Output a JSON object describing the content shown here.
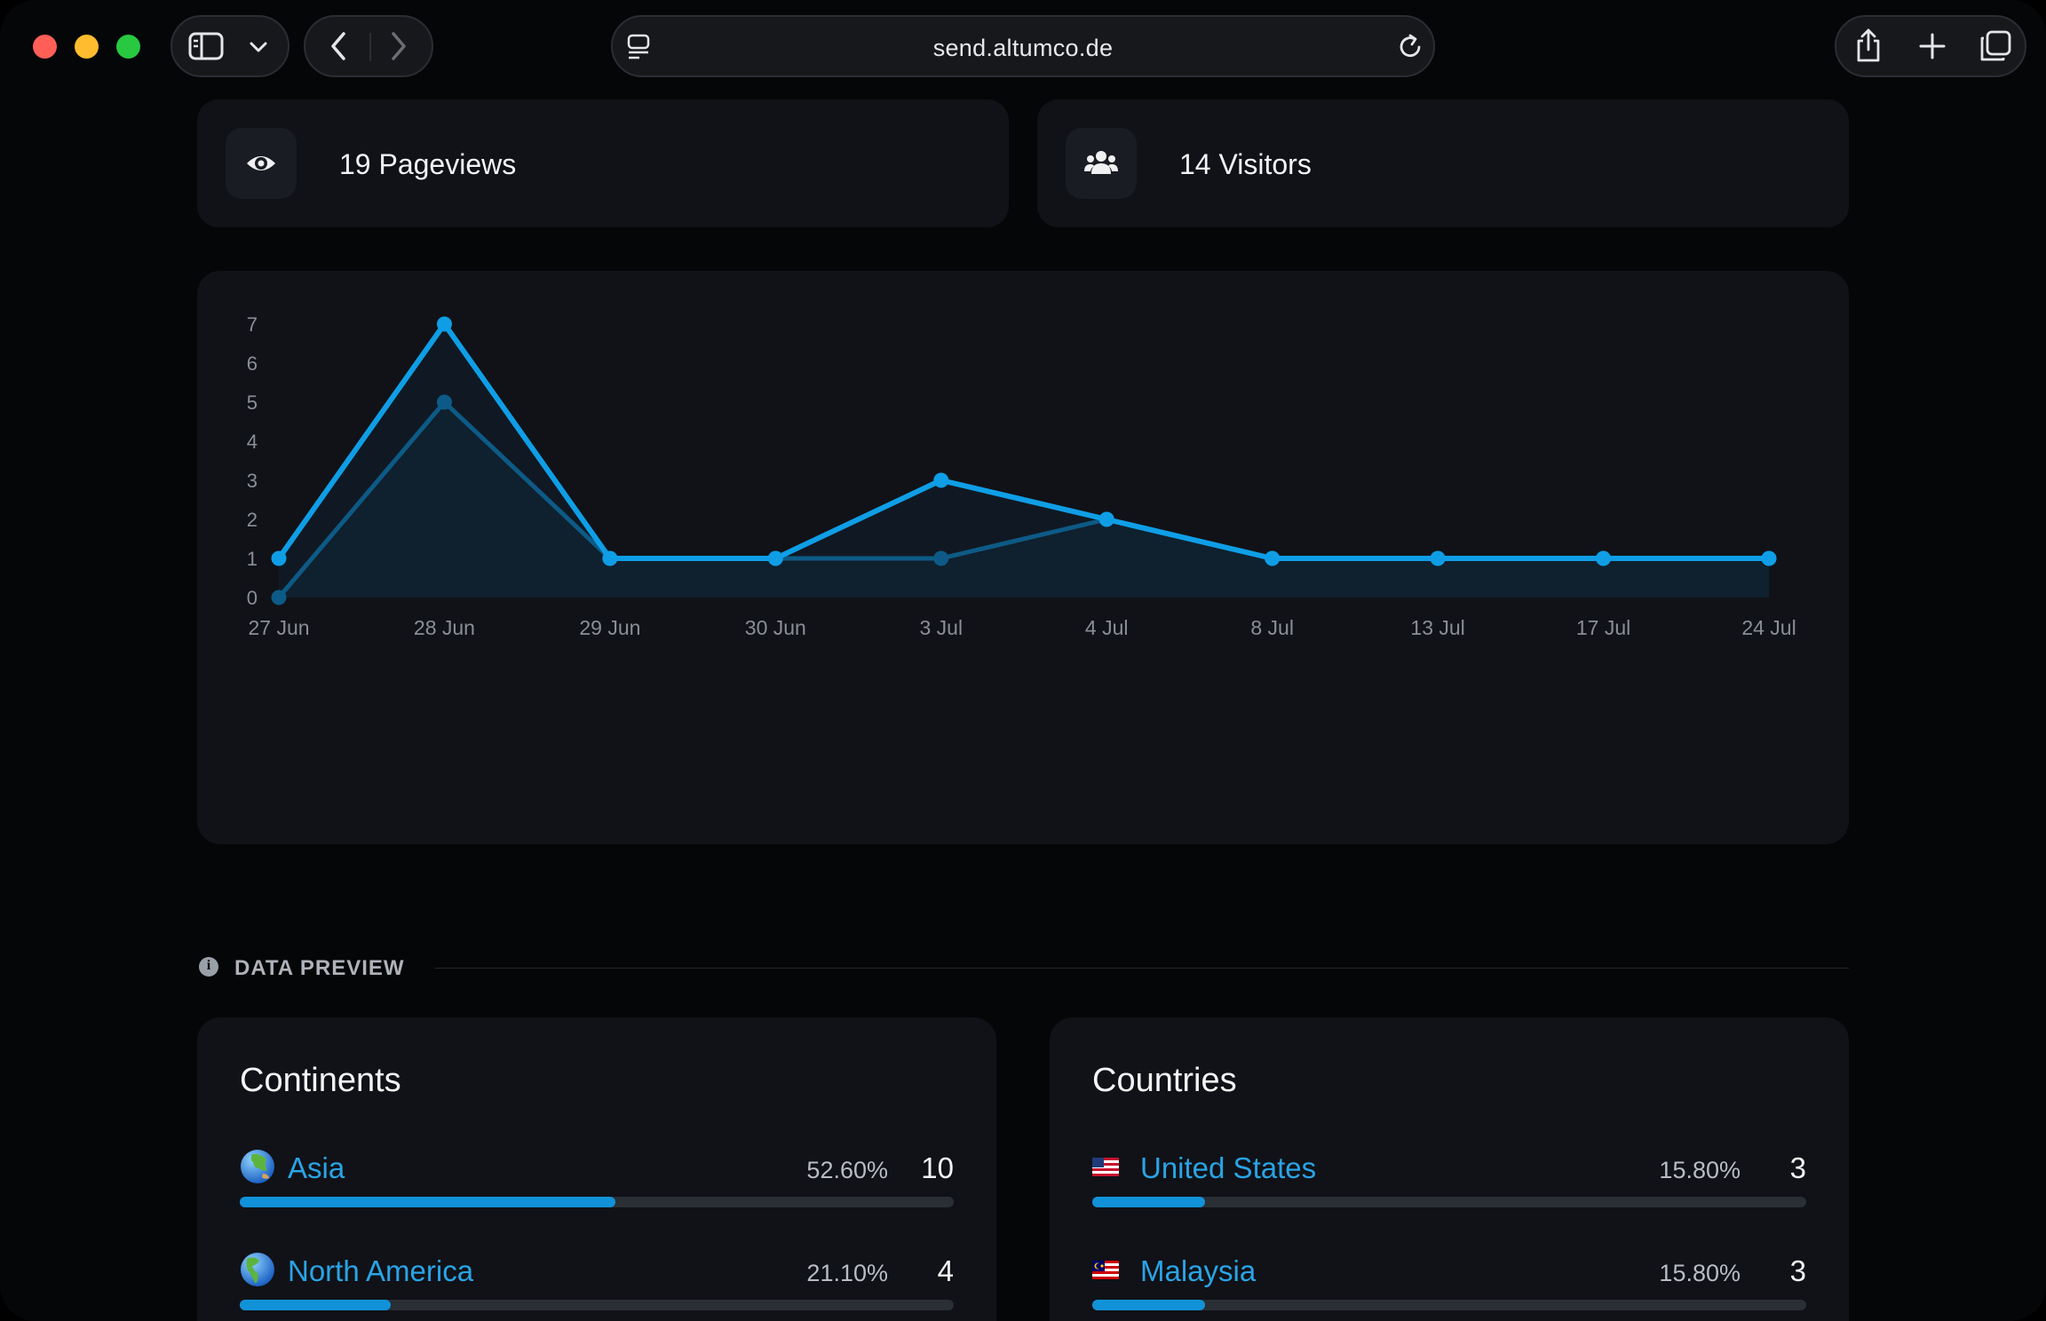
{
  "browser": {
    "url": "send.altumco.de"
  },
  "stats": {
    "pageviews": "19 Pageviews",
    "visitors": "14 Visitors"
  },
  "chart_data": {
    "type": "line",
    "categories": [
      "27 Jun",
      "28 Jun",
      "29 Jun",
      "30 Jun",
      "3 Jul",
      "4 Jul",
      "8 Jul",
      "13 Jul",
      "17 Jul",
      "24 Jul"
    ],
    "y_ticks": [
      "0",
      "1",
      "2",
      "3",
      "4",
      "5",
      "6",
      "7"
    ],
    "ylim": [
      0,
      7
    ],
    "series": [
      {
        "values": [
          1,
          7,
          1,
          1,
          3,
          2,
          1,
          1,
          1,
          1
        ],
        "color": "#0f9ee6"
      },
      {
        "values": [
          0,
          5,
          1,
          1,
          1,
          2,
          1,
          1,
          1,
          1
        ],
        "color": "#0d5a86"
      }
    ],
    "grid": false,
    "legend": "none"
  },
  "section": {
    "title": "DATA PREVIEW"
  },
  "continents": {
    "title": "Continents",
    "rows": [
      {
        "label": "Asia",
        "percent": "52.60%",
        "count": "10",
        "fraction": 0.526,
        "icon": "globe-asia-icon"
      },
      {
        "label": "North America",
        "percent": "21.10%",
        "count": "4",
        "fraction": 0.211,
        "icon": "globe-americas-icon"
      }
    ]
  },
  "countries": {
    "title": "Countries",
    "rows": [
      {
        "label": "United States",
        "percent": "15.80%",
        "count": "3",
        "fraction": 0.158,
        "icon": "us-flag-icon"
      },
      {
        "label": "Malaysia",
        "percent": "15.80%",
        "count": "3",
        "fraction": 0.158,
        "icon": "malaysia-flag-icon"
      }
    ]
  },
  "colors": {
    "accent": "#1192d8",
    "link": "#2aa4e6",
    "card": "#101217",
    "background": "#050608"
  }
}
